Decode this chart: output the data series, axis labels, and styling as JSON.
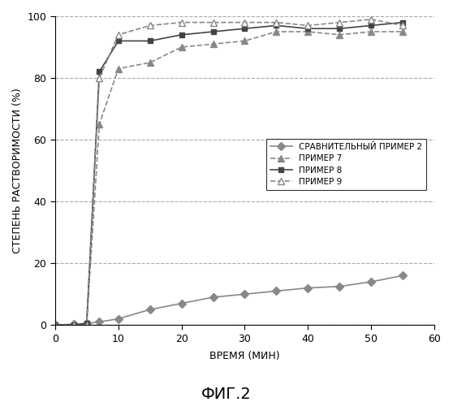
{
  "title": "ФИГ.2",
  "xlabel": "ВРЕМЯ (МИН)",
  "ylabel": "СТЕПЕНЬ РАСТВОРИМОСТИ (%)",
  "xlim": [
    0,
    60
  ],
  "ylim": [
    0,
    100
  ],
  "xticks": [
    0,
    10,
    20,
    30,
    40,
    50,
    60
  ],
  "yticks": [
    0,
    20,
    40,
    60,
    80,
    100
  ],
  "series": [
    {
      "label": "СРАВНИТЕЛЬНЫЙ ПРИМЕР 2",
      "x": [
        0,
        3,
        5,
        7,
        10,
        15,
        20,
        25,
        30,
        35,
        40,
        45,
        50,
        55
      ],
      "y": [
        0,
        0.3,
        0.5,
        1.0,
        2,
        5,
        7,
        9,
        10,
        11,
        12,
        12.5,
        14,
        16
      ],
      "color": "#888888",
      "linestyle": "-",
      "marker": "D",
      "markersize": 5,
      "linewidth": 1.2,
      "markerfacecolor": "#888888",
      "markeredgecolor": "#888888"
    },
    {
      "label": "ПРИМЕР 7",
      "x": [
        0,
        3,
        5,
        7,
        10,
        15,
        20,
        25,
        30,
        35,
        40,
        45,
        50,
        55
      ],
      "y": [
        0,
        0,
        0.5,
        65,
        83,
        85,
        90,
        91,
        92,
        95,
        95,
        94,
        95,
        95
      ],
      "color": "#888888",
      "linestyle": "--",
      "marker": "^",
      "markersize": 6,
      "linewidth": 1.2,
      "markerfacecolor": "#888888",
      "markeredgecolor": "#888888"
    },
    {
      "label": "ПРИМЕР 8",
      "x": [
        0,
        3,
        5,
        7,
        10,
        15,
        20,
        25,
        30,
        35,
        40,
        45,
        50,
        55
      ],
      "y": [
        0,
        0,
        0.5,
        82,
        92,
        92,
        94,
        95,
        96,
        97,
        96,
        96,
        97,
        98
      ],
      "color": "#444444",
      "linestyle": "-",
      "marker": "s",
      "markersize": 5,
      "linewidth": 1.2,
      "markerfacecolor": "#444444",
      "markeredgecolor": "#444444"
    },
    {
      "label": "ПРИМЕР 9",
      "x": [
        0,
        3,
        5,
        7,
        10,
        15,
        20,
        25,
        30,
        35,
        40,
        45,
        50,
        55
      ],
      "y": [
        0,
        0,
        0,
        80,
        94,
        97,
        98,
        98,
        98,
        98,
        97,
        98,
        99,
        97
      ],
      "color": "#888888",
      "linestyle": "--",
      "marker": "^",
      "markersize": 6,
      "linewidth": 1.2,
      "markerfacecolor": "white",
      "markeredgecolor": "#888888"
    }
  ],
  "grid_color": "#aaaaaa",
  "grid_linestyle": "--",
  "background_color": "#ffffff",
  "legend_fontsize": 7.5,
  "axis_label_fontsize": 9,
  "tick_fontsize": 9,
  "title_fontsize": 14
}
